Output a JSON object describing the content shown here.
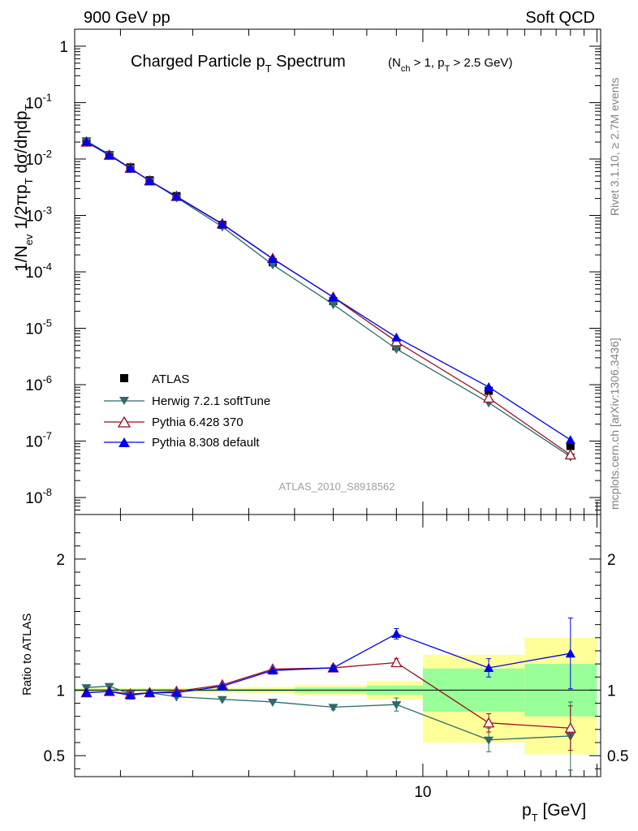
{
  "header": {
    "left": "900 GeV pp",
    "right": "Soft QCD",
    "side_top": "Rivet 3.1.10, ≥ 2.7M events",
    "side_bottom": "mcplots.cern.ch [arXiv:1306.3436]"
  },
  "chart_data": [
    {
      "type": "line",
      "title_main": "Charged Particle p",
      "title_main_sub": "T",
      "title_main_tail": " Spectrum",
      "title_cut_1": "(N",
      "title_cut_1_sub": "ch",
      "title_cut_2": " > 1, p",
      "title_cut_2_sub": "T",
      "title_cut_3": " > 2.5 GeV)",
      "ylabel": "1/N_ev 1/2πp_T dσ/dηdp_T",
      "yscale": "log",
      "xscale": "log",
      "xlim": [
        2.5,
        20.3
      ],
      "ylim": [
        5e-09,
        2
      ],
      "ytick_labels": [
        "1",
        "10^-1",
        "10^-2",
        "10^-3",
        "10^-4",
        "10^-5",
        "10^-6",
        "10^-7",
        "10^-8"
      ],
      "analysis_id": "ATLAS_2010_S8918562",
      "legend_position": "lower-left",
      "x": [
        2.62,
        2.87,
        3.12,
        3.37,
        3.75,
        4.5,
        5.5,
        7.0,
        9.0,
        13.0,
        18.0
      ],
      "series": [
        {
          "name": "ATLAS",
          "color": "#000000",
          "marker": "square",
          "values": [
            0.0205,
            0.0118,
            0.0071,
            0.0042,
            0.0022,
            0.00068,
            0.000148,
            3.05e-05,
            4.8e-06,
            7.8e-07,
            8.2e-08
          ]
        },
        {
          "name": "Herwig 7.2.1 softTune",
          "color": "#2e6b6b",
          "marker": "triangle-down",
          "values": [
            0.021,
            0.0121,
            0.0069,
            0.0041,
            0.00208,
            0.00063,
            0.000134,
            2.65e-05,
            4.3e-06,
            4.8e-07,
            5.3e-08
          ]
        },
        {
          "name": "Pythia 6.428 370",
          "color": "#990f1f",
          "marker": "triangle-up-open",
          "values": [
            0.02,
            0.0117,
            0.0069,
            0.0041,
            0.00218,
            0.00071,
            0.000172,
            3.55e-05,
            5.8e-06,
            5.8e-07,
            5.7e-08
          ]
        },
        {
          "name": "Pythia 8.308 default",
          "color": "#0000ee",
          "marker": "triangle-up",
          "values": [
            0.0201,
            0.0117,
            0.0068,
            0.0041,
            0.00215,
            0.0007,
            0.00017,
            3.56e-05,
            6.9e-06,
            9.1e-07,
            1.05e-07
          ]
        }
      ]
    },
    {
      "type": "line",
      "ylabel": "Ratio to ATLAS",
      "xlabel": "p_T  [GeV]",
      "yscale": "linear",
      "xscale": "log",
      "ylim": [
        0.34,
        2.34
      ],
      "yticks": [
        0.5,
        1,
        2
      ],
      "ytick_labels": [
        "0.5",
        "1",
        "2"
      ],
      "xtick_labels": [
        "10"
      ],
      "x": [
        2.62,
        2.87,
        3.12,
        3.37,
        3.75,
        4.5,
        5.5,
        7.0,
        9.0,
        13.0,
        18.0
      ],
      "uncertainty_bands": {
        "edges": [
          2.5,
          2.75,
          3.0,
          3.25,
          3.5,
          4.0,
          5.0,
          6.0,
          8.0,
          10.0,
          15.0,
          20.0
        ],
        "stat_color": "#99ff99",
        "syst_color": "#ffff99",
        "stat_lo": [
          0.99,
          0.99,
          0.99,
          0.99,
          0.99,
          0.99,
          0.99,
          0.98,
          0.965,
          0.835,
          0.8
        ],
        "stat_hi": [
          1.01,
          1.01,
          1.01,
          1.01,
          1.01,
          1.01,
          1.01,
          1.02,
          1.035,
          1.165,
          1.2
        ],
        "syst_lo": [
          0.985,
          0.985,
          0.985,
          0.985,
          0.985,
          0.98,
          0.975,
          0.96,
          0.93,
          0.6,
          0.51
        ],
        "syst_hi": [
          1.015,
          1.015,
          1.015,
          1.015,
          1.015,
          1.02,
          1.025,
          1.04,
          1.07,
          1.27,
          1.4
        ]
      },
      "series": [
        {
          "name": "Herwig 7.2.1 softTune",
          "color": "#2e6b6b",
          "marker": "triangle-down",
          "values": [
            1.02,
            1.03,
            0.97,
            0.98,
            0.95,
            0.93,
            0.91,
            0.87,
            0.89,
            0.62,
            0.65
          ],
          "err": [
            0.01,
            0.01,
            0.01,
            0.01,
            0.01,
            0.01,
            0.01,
            0.02,
            0.05,
            0.09,
            0.26
          ]
        },
        {
          "name": "Pythia 6.428 370",
          "color": "#990f1f",
          "marker": "triangle-up-open",
          "values": [
            0.98,
            0.99,
            0.97,
            0.98,
            0.99,
            1.04,
            1.16,
            1.17,
            1.21,
            0.75,
            0.71
          ],
          "err": [
            0.01,
            0.01,
            0.01,
            0.01,
            0.01,
            0.01,
            0.01,
            0.02,
            0.03,
            0.07,
            0.17
          ]
        },
        {
          "name": "Pythia 8.308 default",
          "color": "#0000ee",
          "marker": "triangle-up",
          "values": [
            0.98,
            0.99,
            0.96,
            0.98,
            0.98,
            1.03,
            1.15,
            1.17,
            1.43,
            1.17,
            1.28
          ],
          "err": [
            0.01,
            0.01,
            0.01,
            0.01,
            0.01,
            0.01,
            0.01,
            0.02,
            0.04,
            0.07,
            0.27
          ]
        }
      ]
    }
  ]
}
